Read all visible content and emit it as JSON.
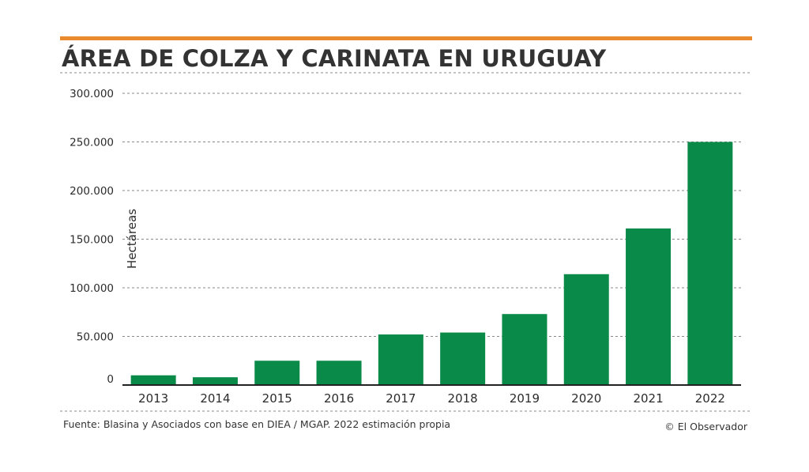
{
  "colors": {
    "accent": "#e98a2f",
    "bar": "#0a8a48",
    "grid": "#8a8a8a",
    "text": "#2b2b2b"
  },
  "chart_data": {
    "type": "bar",
    "title": "ÁREA DE COLZA Y CARINATA EN URUGUAY",
    "ylabel": "Hectáreas",
    "xlabel": "",
    "categories": [
      "2013",
      "2014",
      "2015",
      "2016",
      "2017",
      "2018",
      "2019",
      "2020",
      "2021",
      "2022"
    ],
    "values": [
      10000,
      8000,
      25000,
      25000,
      52000,
      54000,
      73000,
      114000,
      161000,
      250000
    ],
    "ylim": [
      0,
      300000
    ],
    "yticks": [
      0,
      50000,
      100000,
      150000,
      200000,
      250000,
      300000
    ],
    "ytick_labels": [
      "0",
      "50.000",
      "100.000",
      "150.000",
      "200.000",
      "250.000",
      "300.000"
    ],
    "grid": true,
    "legend": "none"
  },
  "footer": {
    "source": "Fuente: Blasina y Asociados con base en DIEA / MGAP. 2022 estimación propia",
    "credit": "© El Observador"
  }
}
